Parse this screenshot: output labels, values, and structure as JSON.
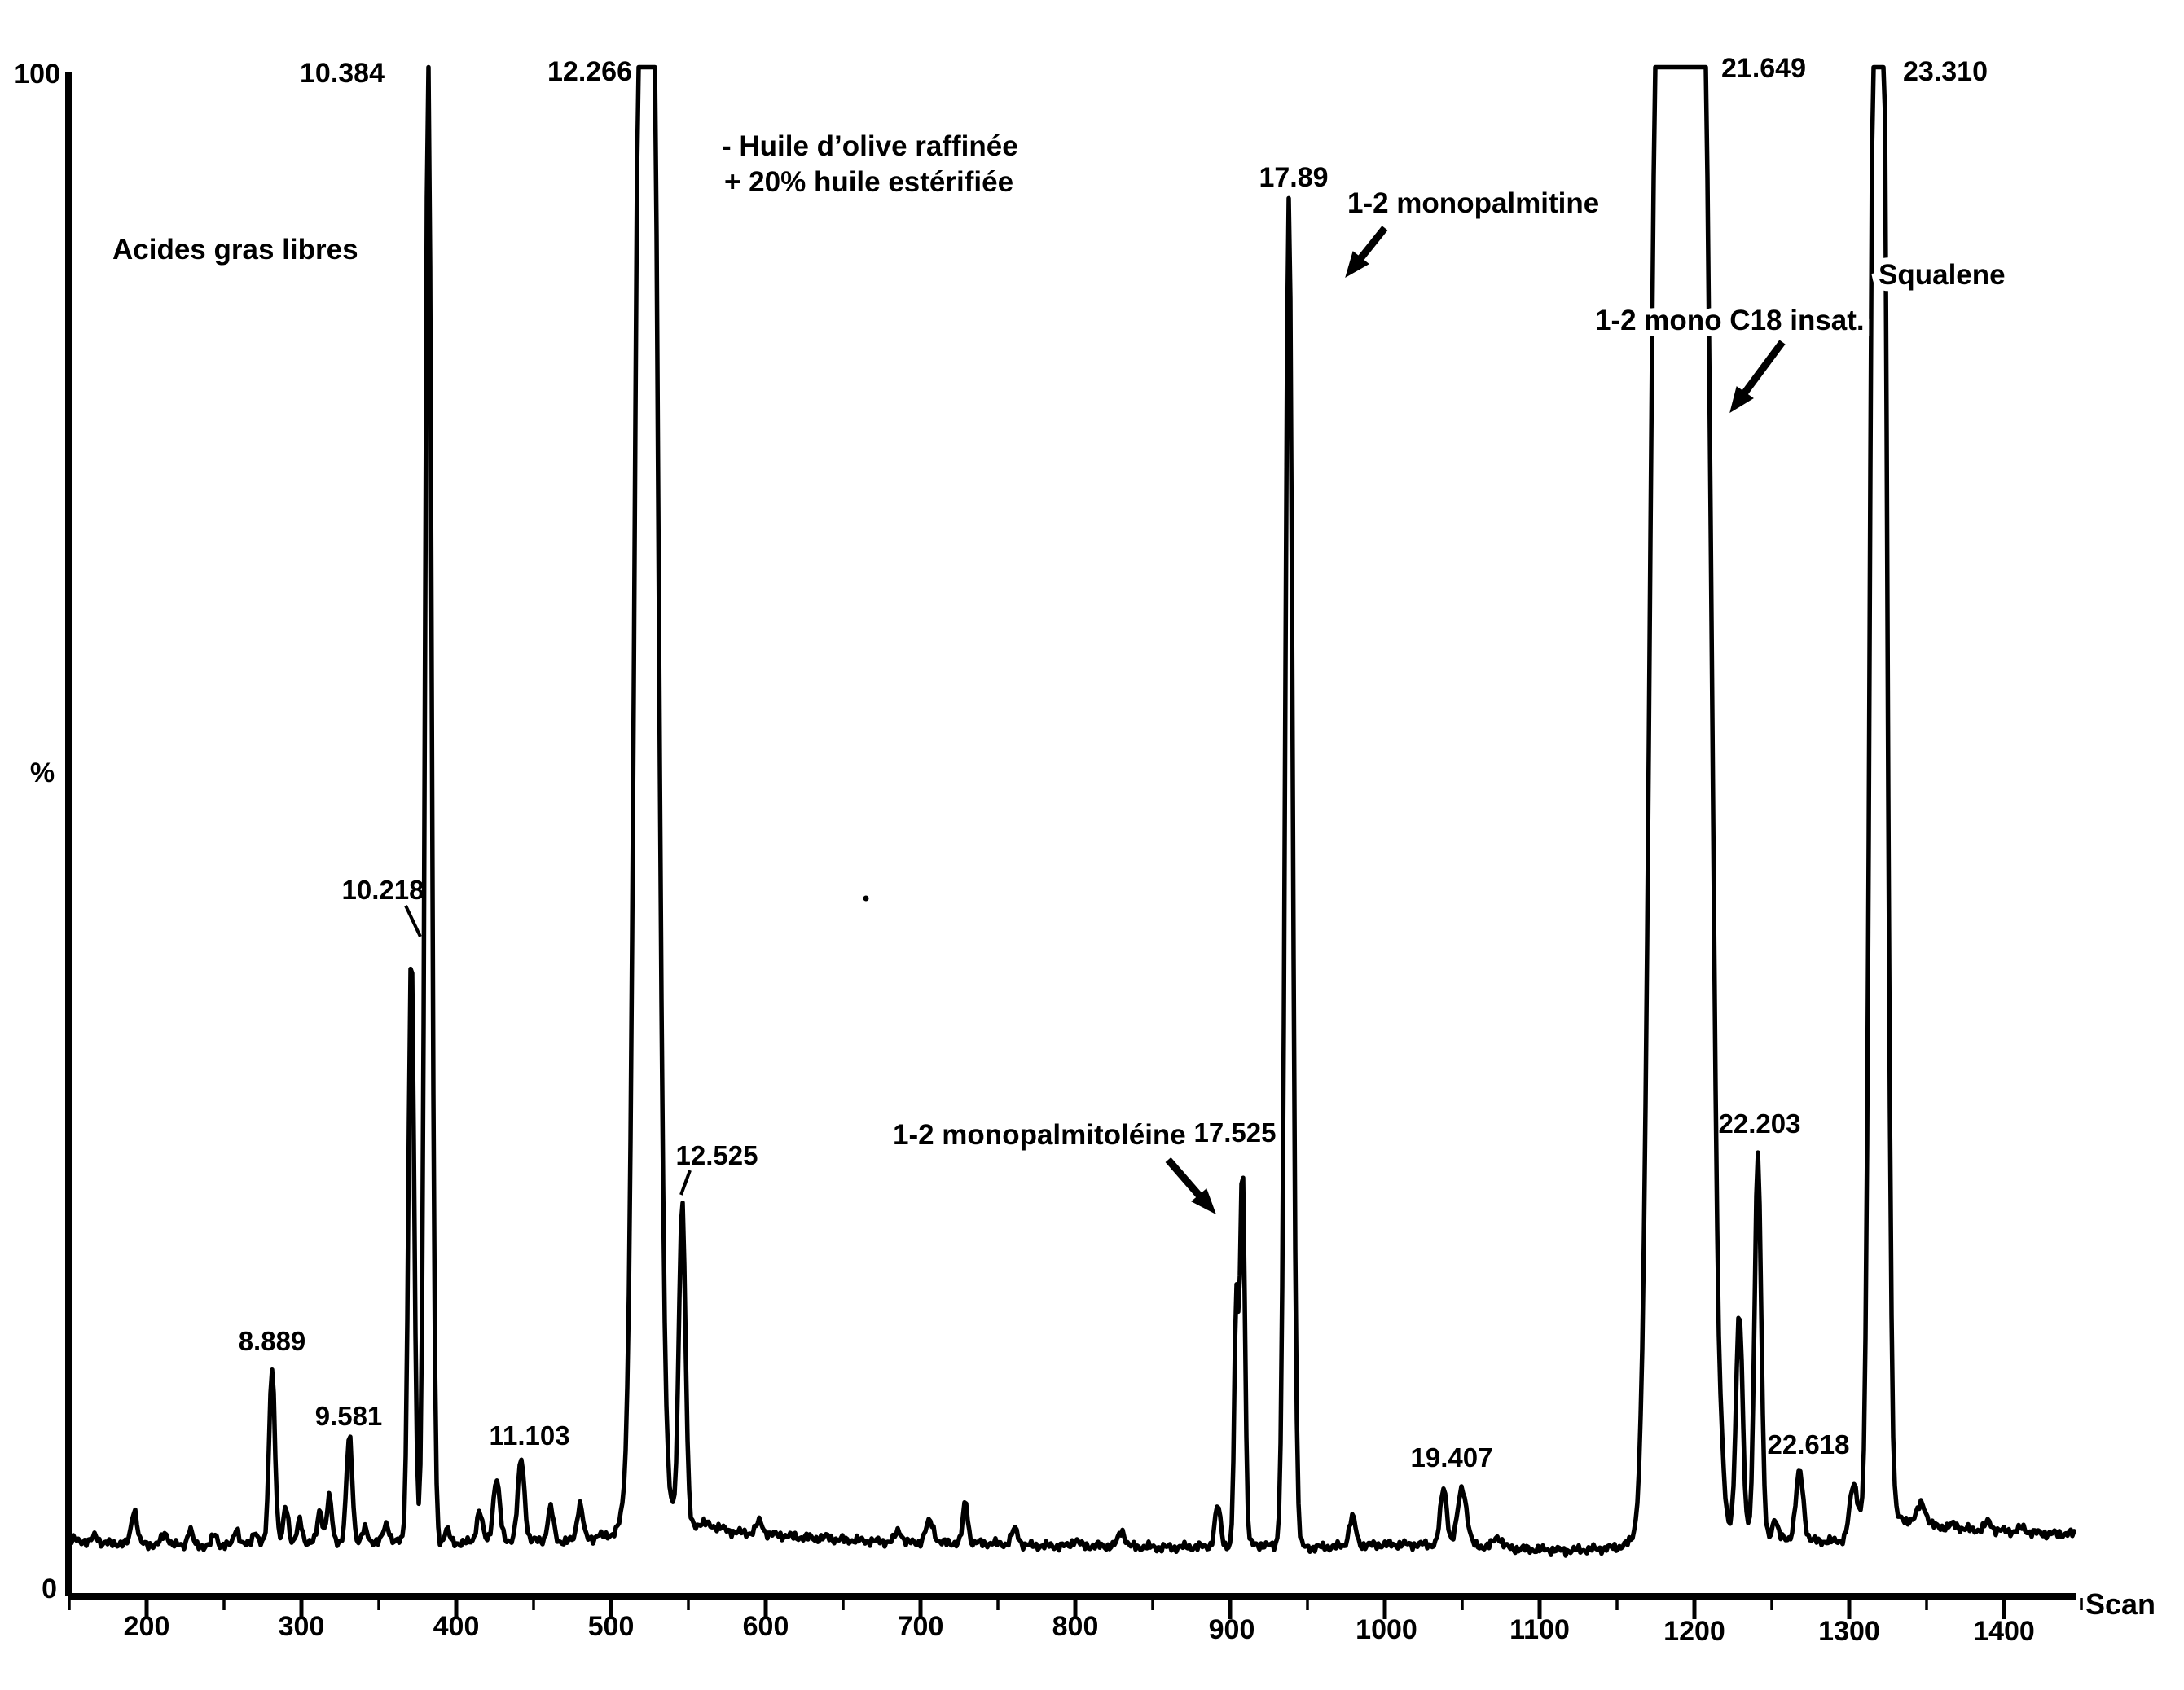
{
  "chart_data": {
    "type": "line",
    "kind": "chromatogram",
    "xlabel": "Scan",
    "ylabel": "%",
    "xlim": [
      150,
      1450
    ],
    "ylim": [
      0,
      100
    ],
    "grid": false,
    "x_ticks": [
      200,
      300,
      400,
      500,
      600,
      700,
      800,
      900,
      1000,
      1100,
      1200,
      1300,
      1400
    ],
    "y_axis": {
      "top": "100",
      "bottom": "0",
      "unit": "%"
    },
    "annotations": [
      {
        "text": "Acides gras libres"
      },
      {
        "text": "- Huile d’olive raffinée"
      },
      {
        "text": "+ 20% huile estérifiée"
      },
      {
        "text": "8.889"
      },
      {
        "text": "9.581"
      },
      {
        "text": "10.218"
      },
      {
        "text": "10.384"
      },
      {
        "text": "11.103"
      },
      {
        "text": "12.266"
      },
      {
        "text": "12.525"
      },
      {
        "text": "17.525"
      },
      {
        "text": "17.89"
      },
      {
        "text": "1-2 monopalmitine"
      },
      {
        "text": "1-2 monopalmitoléine"
      },
      {
        "text": "19.407"
      },
      {
        "text": "21.649"
      },
      {
        "text": "1-2 mono C18  insat."
      },
      {
        "text": "22.203"
      },
      {
        "text": "22.618"
      },
      {
        "text": "23.310"
      },
      {
        "text": "Squalene"
      }
    ],
    "baseline_nodes": [
      [
        152,
        3.6
      ],
      [
        170,
        3.4
      ],
      [
        200,
        3.3
      ],
      [
        240,
        3.2
      ],
      [
        270,
        3.3
      ],
      [
        300,
        3.4
      ],
      [
        320,
        3.5
      ],
      [
        360,
        3.5
      ],
      [
        400,
        3.4
      ],
      [
        440,
        3.6
      ],
      [
        470,
        3.5
      ],
      [
        505,
        3.8
      ],
      [
        545,
        4.4
      ],
      [
        560,
        4.7
      ],
      [
        580,
        4.1
      ],
      [
        600,
        4.0
      ],
      [
        620,
        3.8
      ],
      [
        650,
        3.6
      ],
      [
        700,
        3.4
      ],
      [
        740,
        3.4
      ],
      [
        780,
        3.2
      ],
      [
        820,
        3.2
      ],
      [
        860,
        3.1
      ],
      [
        895,
        3.2
      ],
      [
        915,
        3.3
      ],
      [
        930,
        3.2
      ],
      [
        955,
        3.1
      ],
      [
        975,
        3.2
      ],
      [
        1000,
        3.3
      ],
      [
        1030,
        3.3
      ],
      [
        1060,
        3.2
      ],
      [
        1090,
        3.0
      ],
      [
        1120,
        2.9
      ],
      [
        1150,
        3.1
      ],
      [
        1168,
        3.6
      ],
      [
        1215,
        4.3
      ],
      [
        1235,
        3.9
      ],
      [
        1258,
        3.7
      ],
      [
        1285,
        3.5
      ],
      [
        1305,
        3.6
      ],
      [
        1326,
        4.6
      ],
      [
        1340,
        4.9
      ],
      [
        1355,
        4.5
      ],
      [
        1375,
        4.3
      ],
      [
        1400,
        4.2
      ],
      [
        1430,
        4.0
      ],
      [
        1448,
        4.0
      ]
    ],
    "peaks": [
      {
        "s": 167,
        "apex_pct": 3.9,
        "w": 3
      },
      {
        "s": 192,
        "apex_pct": 5.6,
        "w": 3.5
      },
      {
        "s": 212,
        "apex_pct": 4.0,
        "w": 4
      },
      {
        "s": 228,
        "apex_pct": 4.3,
        "w": 3
      },
      {
        "s": 244,
        "apex_pct": 4.0,
        "w": 3
      },
      {
        "s": 258,
        "apex_pct": 4.4,
        "w": 3
      },
      {
        "s": 270,
        "apex_pct": 4.2,
        "w": 3
      },
      {
        "s": 281,
        "apex_pct": 15.0,
        "w": 3.5,
        "label": "8.889"
      },
      {
        "s": 290,
        "apex_pct": 5.9,
        "w": 3
      },
      {
        "s": 299,
        "apex_pct": 4.9,
        "w": 3
      },
      {
        "s": 312,
        "apex_pct": 5.6,
        "w": 3
      },
      {
        "s": 318,
        "apex_pct": 6.4,
        "w": 3
      },
      {
        "s": 331,
        "apex_pct": 10.4,
        "w": 3.5,
        "label": "9.581"
      },
      {
        "s": 341,
        "apex_pct": 4.3,
        "w": 3
      },
      {
        "s": 355,
        "apex_pct": 4.6,
        "w": 3.5
      },
      {
        "s": 371,
        "apex_pct": 42.5,
        "w": 3.5,
        "label": "10.218"
      },
      {
        "s": 382,
        "apex_pct": 101,
        "w": 4,
        "label": "10.384",
        "clipped": true
      },
      {
        "s": 394,
        "apex_pct": 4.3,
        "w": 3
      },
      {
        "s": 415,
        "apex_pct": 5.5,
        "w": 3.5
      },
      {
        "s": 426,
        "apex_pct": 7.6,
        "w": 4
      },
      {
        "s": 442,
        "apex_pct": 8.9,
        "w": 4,
        "label": "11.103"
      },
      {
        "s": 461,
        "apex_pct": 5.7,
        "w": 3.5
      },
      {
        "s": 480,
        "apex_pct": 6.0,
        "w": 3.5
      },
      {
        "s": 492,
        "apex_pct": 4.0,
        "w": 3
      },
      {
        "s": 519,
        "s2": 527,
        "apex_pct": 103,
        "w": 7,
        "label": "12.266",
        "clipped": true
      },
      {
        "s": 523,
        "apex_pct": 12,
        "w": 16
      },
      {
        "s": 546,
        "apex_pct": 25.7,
        "w": 4,
        "label": "12.525"
      },
      {
        "s": 563,
        "apex_pct": 4.2,
        "w": 4
      },
      {
        "s": 596,
        "apex_pct": 4.8,
        "w": 4
      },
      {
        "s": 640,
        "apex_pct": 3.8,
        "w": 4
      },
      {
        "s": 686,
        "apex_pct": 4.2,
        "w": 4
      },
      {
        "s": 706,
        "apex_pct": 4.8,
        "w": 5
      },
      {
        "s": 729,
        "apex_pct": 6.1,
        "w": 3
      },
      {
        "s": 761,
        "apex_pct": 4.3,
        "w": 4
      },
      {
        "s": 800,
        "apex_pct": 3.6,
        "w": 4
      },
      {
        "s": 830,
        "apex_pct": 4.2,
        "w": 4
      },
      {
        "s": 892,
        "apex_pct": 5.8,
        "w": 3.5
      },
      {
        "s": 904,
        "apex_pct": 19.0,
        "w": 2.5
      },
      {
        "s": 908,
        "apex_pct": 28.4,
        "w": 3,
        "label": "17.525"
      },
      {
        "s": 938,
        "apex_pct": 92.0,
        "w": 4.5,
        "label": "17.89"
      },
      {
        "s": 979,
        "apex_pct": 5.1,
        "w": 4
      },
      {
        "s": 1038,
        "apex_pct": 7.0,
        "w": 4
      },
      {
        "s": 1050,
        "apex_pct": 7.0,
        "w": 5.5,
        "label": "19.407"
      },
      {
        "s": 1073,
        "apex_pct": 3.8,
        "w": 5
      },
      {
        "s": 1176,
        "s2": 1206,
        "apex_pct": 103,
        "w": 9,
        "label": "21.649",
        "clipped": true
      },
      {
        "s": 1191,
        "apex_pct": 9,
        "w": 22
      },
      {
        "s": 1212,
        "apex_pct": 7.0,
        "w": 3
      },
      {
        "s": 1218,
        "apex_pct": 6.0,
        "w": 3
      },
      {
        "s": 1229,
        "apex_pct": 18.7,
        "w": 4
      },
      {
        "s": 1241,
        "apex_pct": 29.0,
        "w": 4,
        "label": "22.203"
      },
      {
        "s": 1252,
        "apex_pct": 5.0,
        "w": 3
      },
      {
        "s": 1268,
        "apex_pct": 8.1,
        "w": 4.5,
        "label": "22.618"
      },
      {
        "s": 1303,
        "apex_pct": 7.2,
        "w": 5
      },
      {
        "s": 1316,
        "s2": 1322,
        "apex_pct": 103,
        "w": 5,
        "label": "23.310",
        "clipped": true
      },
      {
        "s": 1319,
        "apex_pct": 8,
        "w": 11
      },
      {
        "s": 1347,
        "apex_pct": 6.0,
        "w": 5
      },
      {
        "s": 1368,
        "apex_pct": 4.6,
        "w": 5
      },
      {
        "s": 1390,
        "apex_pct": 4.8,
        "w": 4
      },
      {
        "s": 1412,
        "apex_pct": 4.4,
        "w": 4
      }
    ]
  }
}
